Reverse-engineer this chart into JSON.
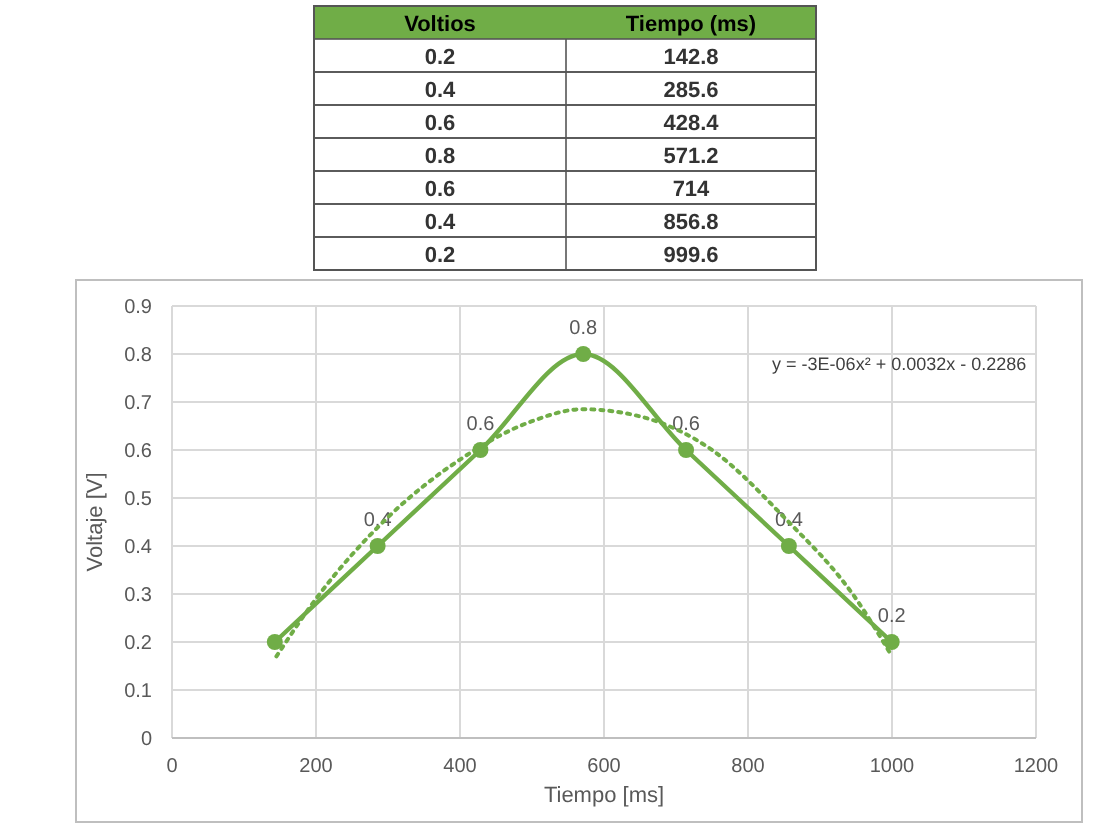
{
  "chart_data": {
    "type": "line",
    "xlabel": "Tiempo [ms]",
    "ylabel": "Voltaje [V]",
    "annotations": [
      "y = -3E-06x² + 0.0032x - 0.2286",
      "Voltios",
      "Tiempo (ms)",
      "0.2",
      "142.8",
      "0.4",
      "285.6",
      "0.6",
      "428.4",
      "0.8",
      "571.2",
      "0.6",
      "714",
      "0.4",
      "856.8",
      "0.2",
      "999.6"
    ],
    "x": [
      142.8,
      285.6,
      428.4,
      571.2,
      714,
      856.8,
      999.6
    ],
    "series": [
      {
        "color": "#70ad47",
        "values": [
          0.2,
          0.4,
          0.6,
          0.8,
          0.6,
          0.4,
          0.2
        ],
        "value_labels": [
          null,
          "0.4",
          "0.6",
          "0.8",
          "0.6",
          "0.4",
          "0.2"
        ],
        "marker": "circle",
        "line_style": "solid"
      },
      {
        "color": "#70ad47",
        "x": [
          145,
          200,
          300,
          400,
          500,
          570,
          650,
          750,
          850,
          950,
          1000
        ],
        "values": [
          0.17,
          0.29,
          0.46,
          0.58,
          0.66,
          0.685,
          0.67,
          0.6,
          0.46,
          0.29,
          0.17
        ],
        "marker": "none",
        "line_style": "dotted"
      }
    ],
    "xlim": [
      0,
      1200
    ],
    "xticks": [
      0,
      200,
      400,
      600,
      800,
      1000,
      1200
    ],
    "ylim": [
      0,
      0.9
    ],
    "yticks": [
      0,
      0.1,
      0.2,
      0.3,
      0.4,
      0.5,
      0.6,
      0.7,
      0.8,
      0.9
    ],
    "grid": true
  }
}
